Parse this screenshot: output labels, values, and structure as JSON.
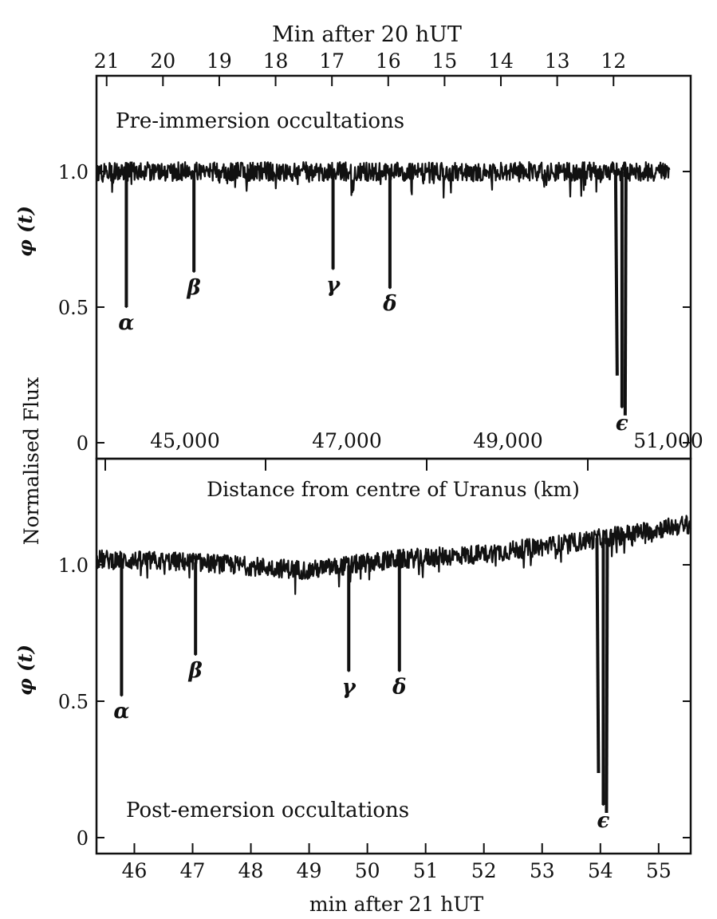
{
  "ink_color": "#111111",
  "paper_color": "#ffffff",
  "shared": {
    "ylabel": "Normalised Flux",
    "center_axis_label": "Distance from centre of Uranus (km)",
    "distance_ticks": [
      "45,000",
      "47,000",
      "49,000",
      "51,000"
    ]
  },
  "chart_data": [
    {
      "type": "line",
      "panel": "top",
      "title": "Pre-immersion occultations",
      "xlabel": "Min after 20 hUT",
      "ylabel": "φ (t)",
      "x_ticks": [
        21,
        20,
        19,
        18,
        17,
        16,
        15,
        14,
        13,
        12
      ],
      "xlim": [
        21.18,
        10.63
      ],
      "y_ticks": [
        "0",
        "0.5",
        "1.0"
      ],
      "ylim": [
        -0.03,
        1.3
      ],
      "baseline": [
        [
          21.18,
          1.0
        ],
        [
          15,
          1.0
        ],
        [
          11.0,
          1.0
        ]
      ],
      "noise_amplitude": 0.035,
      "dips": [
        {
          "label": "α",
          "x": 20.65,
          "min": 0.5
        },
        {
          "label": "β",
          "x": 19.45,
          "min": 0.63
        },
        {
          "label": "γ",
          "x": 16.98,
          "min": 0.64
        },
        {
          "label": "δ",
          "x": 15.97,
          "min": 0.57
        },
        {
          "label": "ϵ",
          "x": 11.85,
          "min": 0.13
        }
      ]
    },
    {
      "type": "line",
      "panel": "bottom",
      "title": "Post-emersion occultations",
      "xlabel": "min after 21 hUT",
      "ylabel": "φ (t)",
      "x_ticks": [
        46,
        47,
        48,
        49,
        50,
        51,
        52,
        53,
        54,
        55
      ],
      "xlim": [
        45.35,
        55.55
      ],
      "y_ticks": [
        "0",
        "0.5",
        "1.0"
      ],
      "ylim": [
        -0.03,
        1.3
      ],
      "baseline": [
        [
          45.35,
          1.02
        ],
        [
          47.0,
          1.01
        ],
        [
          49.0,
          0.98
        ],
        [
          50.5,
          1.02
        ],
        [
          52.0,
          1.04
        ],
        [
          53.5,
          1.08
        ],
        [
          55.55,
          1.15
        ]
      ],
      "noise_amplitude": 0.035,
      "dips": [
        {
          "label": "α",
          "x": 45.78,
          "min": 0.52
        },
        {
          "label": "β",
          "x": 47.05,
          "min": 0.67
        },
        {
          "label": "γ",
          "x": 49.68,
          "min": 0.61
        },
        {
          "label": "δ",
          "x": 50.55,
          "min": 0.61
        },
        {
          "label": "ϵ",
          "x": 54.05,
          "min": 0.12
        }
      ]
    }
  ]
}
